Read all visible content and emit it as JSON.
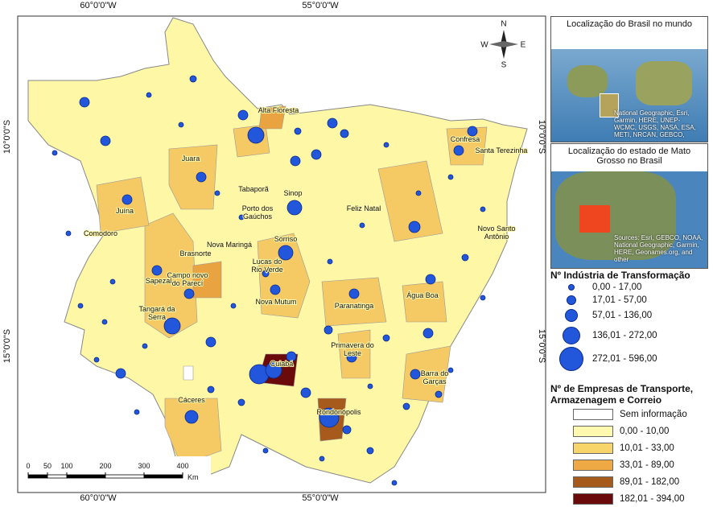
{
  "map": {
    "lon_labels": [
      "60°0'0\"W",
      "55°0'0\"W"
    ],
    "lat_labels": [
      "10°0'0\"S",
      "15°0'0\"S"
    ],
    "places": [
      "Alta Floresta",
      "Confresa",
      "Santa Terezinha",
      "Juara",
      "Tabaporã",
      "Sinop",
      "Porto dos Gaúchos",
      "Feliz Natal",
      "Juína",
      "Novo Santo Antônio",
      "Comodoro",
      "Brasnorte",
      "Nova Maringá",
      "Sorriso",
      "Lucas do Rio Verde",
      "Campo novo do Parecí",
      "Sapezal",
      "Nova Mutum",
      "Paranatinga",
      "Água Boa",
      "Tangará da Serra",
      "Primavera do Leste",
      "Cuiabá",
      "Barra do Garças",
      "Rondonópolis",
      "Cáceres"
    ],
    "compass": {
      "n": "N",
      "s": "S",
      "e": "E",
      "w": "W"
    },
    "scale": {
      "ticks": [
        0,
        50,
        100,
        200,
        300,
        400
      ],
      "unit": "Km"
    }
  },
  "insets": [
    {
      "title": "Localização do Brasil no mundo",
      "credits": "National Geographic, Esri, Garmin, HERE, UNEP-WCMC, USGS, NASA, ESA, METI, NRCAN, GEBCO,"
    },
    {
      "title": "Localização do estado de Mato Grosso no Brasil",
      "credits": "Sources: Esri, GEBCO, NOAA, National Geographic, Garmin, HERE, Geonames.org, and other"
    }
  ],
  "legend": {
    "industry": {
      "title": "Nº Indústria de Transformação",
      "items": [
        "0,00 - 17,00",
        "17,01 - 57,00",
        "57,01 - 136,00",
        "136,01 - 272,00",
        "272,01 - 596,00"
      ]
    },
    "transport": {
      "title": "Nº de Empresas de Transporte, Armazenagem e Correio",
      "items": [
        "Sem informação",
        "0,00 - 10,00",
        "10,01 - 33,00",
        "33,01 - 89,00",
        "89,01 - 182,00",
        "182,01 - 394,00"
      ]
    }
  }
}
